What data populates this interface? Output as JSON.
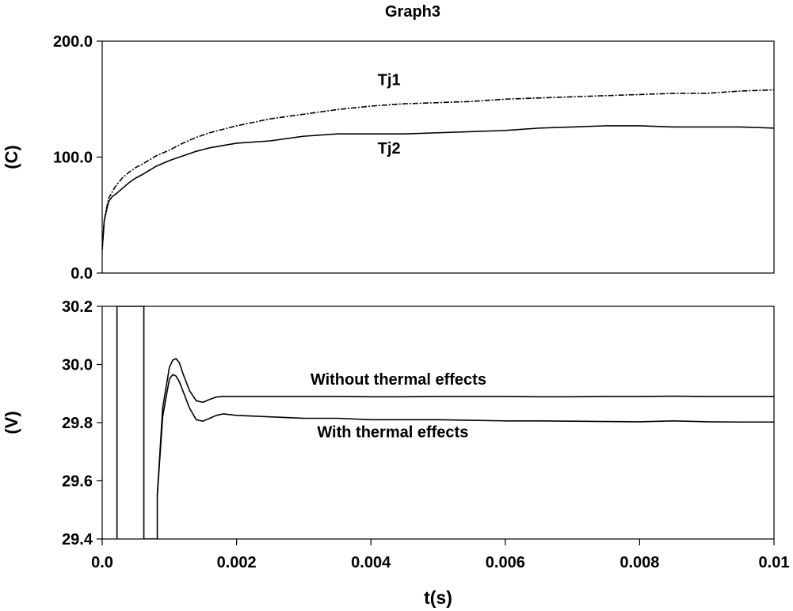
{
  "title": "Graph3",
  "xlabel": "t(s)",
  "colors": {
    "line": "#000000",
    "background": "#ffffff"
  },
  "chart_data": [
    {
      "type": "line",
      "panel": "top",
      "ylabel": "(C)",
      "xlim": [
        0,
        0.01
      ],
      "ylim": [
        0,
        200
      ],
      "yticks": [
        "0.0",
        "100.0",
        "200.0"
      ],
      "ytick_values": [
        0,
        100,
        200
      ],
      "grid": false,
      "series": [
        {
          "name": "Tj1",
          "style": "dashed",
          "x": [
            0.0,
            3e-05,
            8e-05,
            0.0001,
            0.00015,
            0.0002,
            0.0003,
            0.0004,
            0.0005,
            0.0006,
            0.0008,
            0.001,
            0.0012,
            0.0014,
            0.0016,
            0.0018,
            0.002,
            0.0025,
            0.003,
            0.0035,
            0.004,
            0.0045,
            0.005,
            0.0055,
            0.006,
            0.0065,
            0.007,
            0.0075,
            0.008,
            0.0085,
            0.009,
            0.0095,
            0.01
          ],
          "y": [
            20,
            45,
            60,
            65,
            70,
            75,
            82,
            87,
            91,
            94,
            101,
            106,
            112,
            117,
            121,
            124,
            127,
            133,
            137,
            141,
            144,
            146,
            147,
            148,
            150,
            151,
            152,
            153,
            154,
            155,
            155,
            157,
            158
          ]
        },
        {
          "name": "Tj2",
          "style": "solid",
          "x": [
            0.0,
            3e-05,
            8e-05,
            0.0001,
            0.00015,
            0.0002,
            0.0003,
            0.0004,
            0.0005,
            0.0006,
            0.0008,
            0.001,
            0.0012,
            0.0014,
            0.0016,
            0.0018,
            0.002,
            0.0025,
            0.003,
            0.0035,
            0.004,
            0.0045,
            0.005,
            0.0055,
            0.006,
            0.0065,
            0.007,
            0.0075,
            0.008,
            0.0085,
            0.009,
            0.0095,
            0.01
          ],
          "y": [
            20,
            45,
            58,
            62,
            66,
            68,
            73,
            78,
            82,
            85,
            92,
            97,
            101,
            105,
            108,
            110,
            112,
            114,
            118,
            120,
            120,
            120,
            121,
            122,
            123,
            125,
            126,
            127,
            127,
            126,
            126,
            126,
            125
          ]
        }
      ],
      "annotations": [
        {
          "text": "Tj1",
          "x": 0.0041,
          "y": 162
        },
        {
          "text": "Tj2",
          "x": 0.0041,
          "y": 103
        }
      ]
    },
    {
      "type": "line",
      "panel": "bottom",
      "ylabel": "(V)",
      "xlim": [
        0,
        0.01
      ],
      "ylim": [
        29.4,
        30.2
      ],
      "yticks": [
        "29.4",
        "29.6",
        "29.8",
        "30.0",
        "30.2"
      ],
      "ytick_values": [
        29.4,
        29.6,
        29.8,
        30.0,
        30.2
      ],
      "xticks": [
        "0.0",
        "0.002",
        "0.004",
        "0.006",
        "0.008",
        "0.01"
      ],
      "xtick_values": [
        0,
        0.002,
        0.004,
        0.006,
        0.008,
        0.01
      ],
      "grid": false,
      "series": [
        {
          "name": "Without thermal effects",
          "style": "solid",
          "x": [
            0.00022,
            0.00022,
            0.00062,
            0.00062,
            0.00082,
            0.00082,
            0.0009,
            0.001,
            0.00105,
            0.0011,
            0.00115,
            0.0012,
            0.0013,
            0.0014,
            0.0015,
            0.0016,
            0.0017,
            0.0018,
            0.002,
            0.0025,
            0.003,
            0.0035,
            0.004,
            0.0045,
            0.005,
            0.0055,
            0.006,
            0.0065,
            0.007,
            0.0075,
            0.008,
            0.0085,
            0.009,
            0.0095,
            0.01
          ],
          "y": [
            29.4,
            30.2,
            30.2,
            29.4,
            29.4,
            29.55,
            29.85,
            29.99,
            30.015,
            30.02,
            30.005,
            29.97,
            29.91,
            29.875,
            29.87,
            29.88,
            29.888,
            29.89,
            29.89,
            29.89,
            29.89,
            29.89,
            29.889,
            29.889,
            29.89,
            29.89,
            29.89,
            29.889,
            29.889,
            29.89,
            29.89,
            29.891,
            29.89,
            29.89,
            29.89
          ]
        },
        {
          "name": "With thermal effects",
          "style": "solid",
          "x": [
            0.00082,
            0.0009,
            0.001,
            0.00105,
            0.0011,
            0.00115,
            0.0012,
            0.0013,
            0.0014,
            0.0015,
            0.0016,
            0.0017,
            0.0018,
            0.002,
            0.0025,
            0.003,
            0.0035,
            0.004,
            0.0045,
            0.005,
            0.0055,
            0.006,
            0.0065,
            0.007,
            0.0075,
            0.008,
            0.0085,
            0.009,
            0.0095,
            0.01
          ],
          "y": [
            29.55,
            29.82,
            29.95,
            29.965,
            29.96,
            29.94,
            29.91,
            29.85,
            29.81,
            29.805,
            29.815,
            29.825,
            29.83,
            29.825,
            29.82,
            29.815,
            29.815,
            29.81,
            29.81,
            29.81,
            29.808,
            29.806,
            29.806,
            29.805,
            29.804,
            29.803,
            29.806,
            29.803,
            29.802,
            29.802
          ]
        }
      ],
      "annotations": [
        {
          "text": "Without thermal effects",
          "x": 0.0031,
          "y": 29.93
        },
        {
          "text": "With thermal effects",
          "x": 0.0032,
          "y": 29.75
        }
      ]
    }
  ]
}
